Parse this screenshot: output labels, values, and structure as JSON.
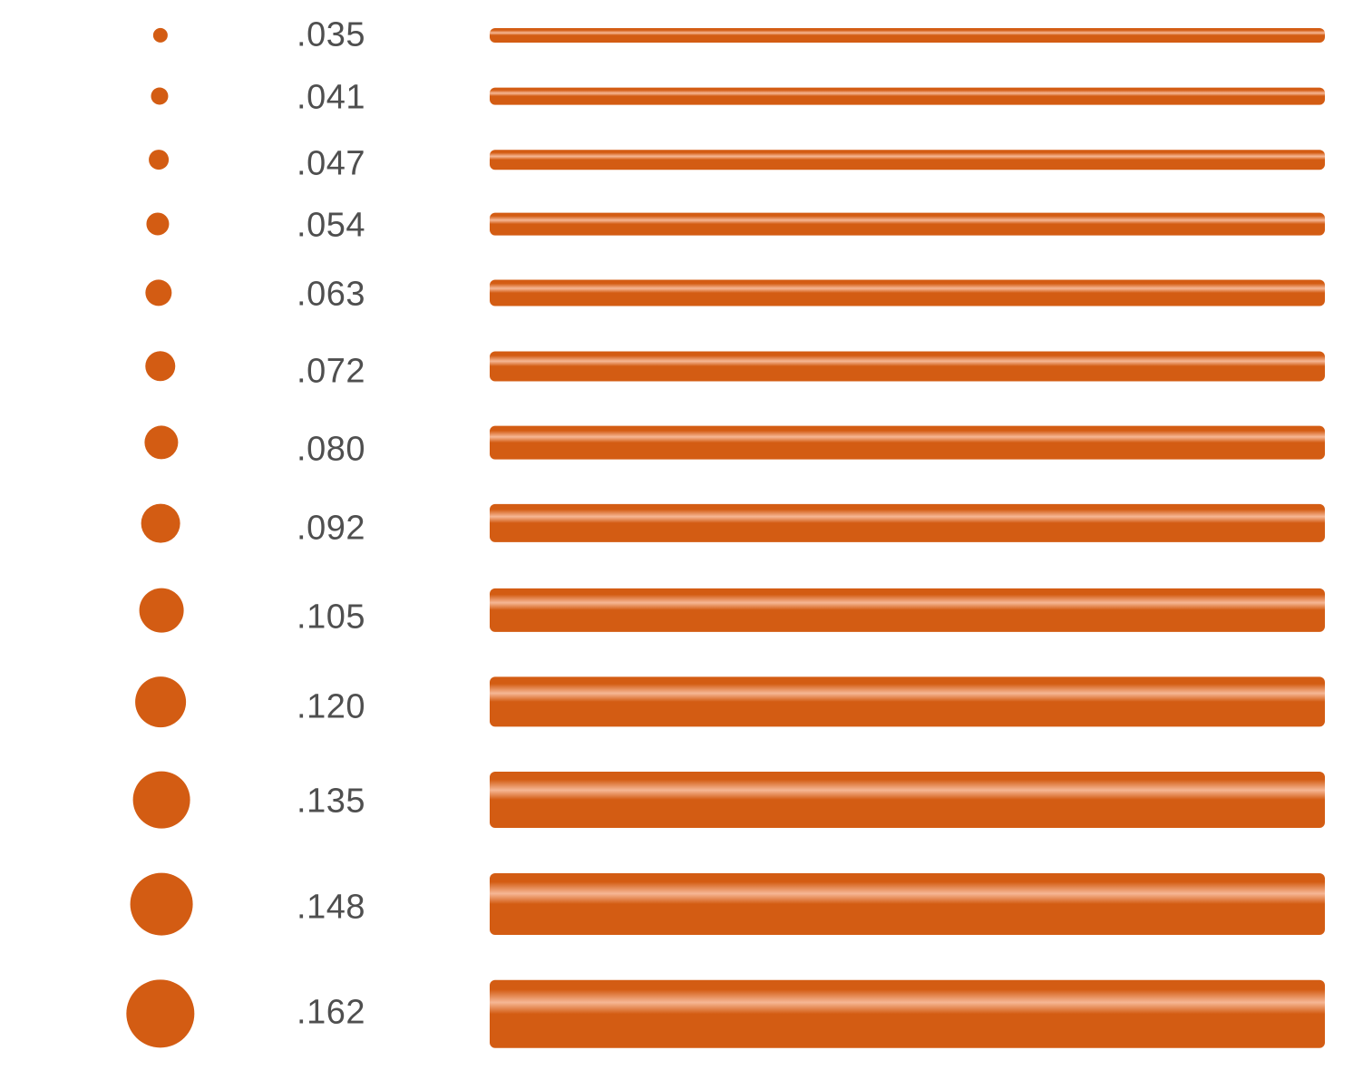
{
  "colors": {
    "wire": "#d35c13",
    "highlight": "#f6b795",
    "label_text": "#4f4f4f"
  },
  "sizes": [
    {
      "label": ".035",
      "value": 0.035
    },
    {
      "label": ".041",
      "value": 0.041
    },
    {
      "label": ".047",
      "value": 0.047
    },
    {
      "label": ".054",
      "value": 0.054
    },
    {
      "label": ".063",
      "value": 0.063
    },
    {
      "label": ".072",
      "value": 0.072
    },
    {
      "label": ".080",
      "value": 0.08
    },
    {
      "label": ".092",
      "value": 0.092
    },
    {
      "label": ".105",
      "value": 0.105
    },
    {
      "label": ".120",
      "value": 0.12
    },
    {
      "label": ".135",
      "value": 0.135
    },
    {
      "label": ".148",
      "value": 0.148
    },
    {
      "label": ".162",
      "value": 0.162
    }
  ]
}
